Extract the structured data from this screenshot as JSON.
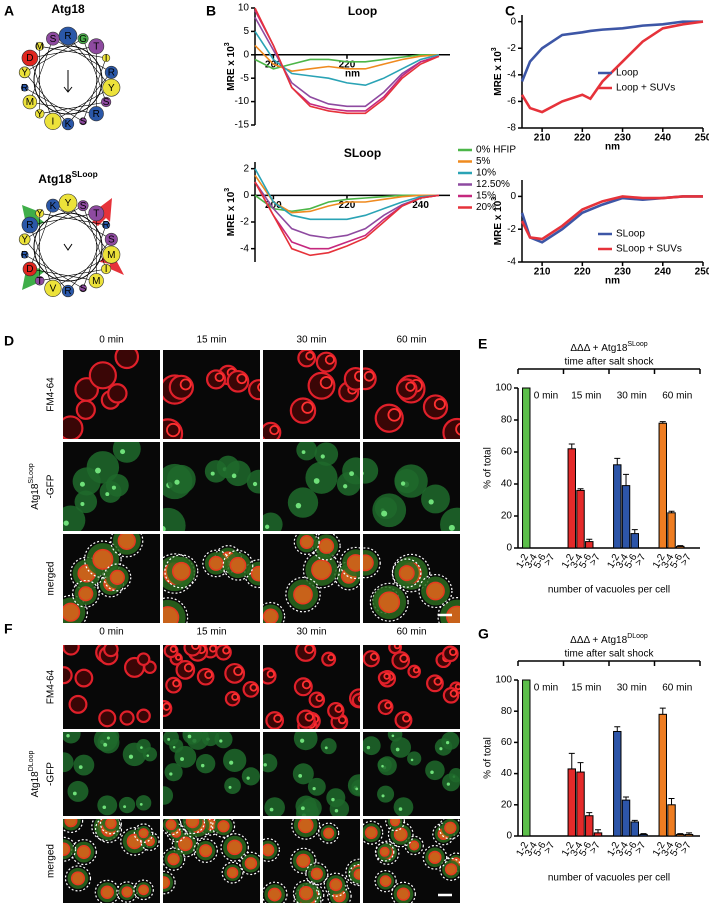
{
  "panel_labels": [
    "A",
    "B",
    "C",
    "D",
    "E",
    "F",
    "G"
  ],
  "helical_wheels": [
    {
      "title": "Atg18",
      "residues": [
        "R",
        "Y",
        "I",
        "D",
        "T",
        "R",
        "M",
        "S",
        "R",
        "K",
        "Y",
        "G",
        "S",
        "Y",
        "M",
        "I",
        "S",
        "R"
      ]
    },
    {
      "title": "Atg18",
      "title_superscript": "SLoop",
      "residues": [
        "Y",
        "M",
        "V",
        "R",
        "T",
        "M",
        "D",
        "K",
        "S",
        "R",
        "Y",
        "S",
        "I",
        "T",
        "Y",
        "R",
        "S",
        "R"
      ]
    }
  ],
  "microscopy": [
    {
      "columns": [
        "0 min",
        "15 min",
        "30 min",
        "60 min"
      ],
      "rows": [
        {
          "label": "FM4-64"
        },
        {
          "label": "Atg18",
          "superscript": "SLoop",
          "suffix": "-GFP"
        },
        {
          "label": "merged"
        }
      ]
    },
    {
      "columns": [
        "0 min",
        "15 min",
        "30 min",
        "60 min"
      ],
      "rows": [
        {
          "label": "FM4-64"
        },
        {
          "label": "Atg18",
          "superscript": "DLoop",
          "suffix": "-GFP"
        },
        {
          "label": "merged"
        }
      ]
    }
  ],
  "chart_data": [
    {
      "type": "line",
      "title": "Loop",
      "xlabel": "nm",
      "ylabel": "MRE x 10",
      "ylabel_superscript": "3",
      "xlim": [
        195,
        248
      ],
      "ylim": [
        -15,
        10
      ],
      "xticks": [
        200,
        220
      ],
      "yticks": [
        10,
        5,
        0,
        -5,
        -10,
        -15
      ],
      "xaxis_position": "zero",
      "legend": "outside-right",
      "x": [
        195,
        200,
        205,
        210,
        215,
        220,
        225,
        230,
        235,
        240,
        245
      ],
      "series": [
        {
          "name": "0% HFIP",
          "color": "#4cb648",
          "values": [
            -1,
            -3,
            -2,
            -1,
            -1,
            -1.5,
            -1.5,
            -1,
            -0.5,
            0,
            0
          ]
        },
        {
          "name": "5%",
          "color": "#ef8a1f",
          "values": [
            2,
            -2,
            -3.5,
            -3,
            -2.5,
            -3,
            -3,
            -2,
            -1,
            -0.3,
            0
          ]
        },
        {
          "name": "10%",
          "color": "#2aa3b5",
          "values": [
            5,
            -1,
            -4,
            -4.5,
            -5,
            -6,
            -6.5,
            -5,
            -3,
            -1,
            0
          ]
        },
        {
          "name": "12.50%",
          "color": "#8e4aa0",
          "values": [
            8,
            1,
            -6,
            -9,
            -10.5,
            -11,
            -11,
            -8,
            -4,
            -1.5,
            -0.3
          ]
        },
        {
          "name": "15%",
          "color": "#c5287e",
          "values": [
            9.5,
            2,
            -7,
            -10.5,
            -11.5,
            -12,
            -12,
            -9,
            -4.5,
            -1.5,
            -0.3
          ]
        },
        {
          "name": "20%",
          "color": "#e6323a",
          "values": [
            10,
            2,
            -7,
            -11,
            -12,
            -12.5,
            -12.5,
            -9.5,
            -5,
            -2,
            -0.3
          ]
        }
      ]
    },
    {
      "type": "line",
      "title": "SLoop",
      "ylabel": "MRE x 10",
      "ylabel_superscript": "3",
      "xlim": [
        195,
        248
      ],
      "ylim": [
        -5,
        2.5
      ],
      "xticks": [
        200,
        220,
        240
      ],
      "yticks": [
        2,
        0,
        -2,
        -4
      ],
      "xaxis_position": "zero",
      "x": [
        195,
        200,
        205,
        210,
        215,
        220,
        225,
        230,
        235,
        240,
        245
      ],
      "series": [
        {
          "color": "#4cb648",
          "values": [
            0,
            -1,
            -1.2,
            -1,
            -0.5,
            -0.3,
            -0.2,
            -0.1,
            0,
            0,
            0
          ]
        },
        {
          "color": "#ef8a1f",
          "values": [
            1.5,
            -0.5,
            -1.3,
            -1.2,
            -0.8,
            -0.5,
            -0.5,
            -0.3,
            -0.1,
            0,
            0
          ]
        },
        {
          "color": "#2aa3b5",
          "values": [
            2,
            -0.5,
            -1.5,
            -1.8,
            -1.8,
            -1.8,
            -1.5,
            -1,
            -0.5,
            -0.1,
            0
          ]
        },
        {
          "color": "#8e4aa0",
          "values": [
            1,
            -1,
            -2.5,
            -3,
            -3.2,
            -3,
            -2.5,
            -1.5,
            -0.7,
            -0.2,
            0
          ]
        },
        {
          "color": "#c5287e",
          "values": [
            1,
            -1.5,
            -3.5,
            -4,
            -4,
            -3.5,
            -3,
            -1.8,
            -0.8,
            -0.2,
            0
          ]
        },
        {
          "color": "#e6323a",
          "values": [
            1,
            -1.5,
            -4,
            -4.5,
            -4.3,
            -3.8,
            -3.2,
            -2,
            -0.8,
            -0.2,
            0
          ]
        }
      ]
    },
    {
      "type": "line",
      "xlabel": "nm",
      "ylabel": "MRE x 10",
      "ylabel_superscript": "3",
      "xlim": [
        205,
        250
      ],
      "ylim": [
        -8,
        0.5
      ],
      "xticks": [
        210,
        220,
        230,
        240,
        250
      ],
      "yticks": [
        0,
        -2,
        -4,
        -6,
        -8
      ],
      "xaxis_position": "bottom",
      "legend": "right",
      "x": [
        205,
        207,
        210,
        215,
        220,
        222,
        225,
        230,
        235,
        240,
        245,
        250
      ],
      "series": [
        {
          "name": "Loop",
          "color": "#3d56a6",
          "values": [
            -4.5,
            -3,
            -2,
            -1,
            -0.8,
            -0.7,
            -0.6,
            -0.5,
            -0.3,
            -0.2,
            0,
            0
          ]
        },
        {
          "name": "Loop + SUVs",
          "color": "#e6323a",
          "values": [
            -5.5,
            -6.5,
            -6.8,
            -6,
            -5.5,
            -5.8,
            -4.5,
            -3,
            -1.5,
            -0.5,
            -0.2,
            0
          ]
        }
      ]
    },
    {
      "type": "line",
      "xlabel": "nm",
      "ylabel": "MRE x 10",
      "ylabel_superscript": "3",
      "xlim": [
        205,
        250
      ],
      "ylim": [
        -4,
        1
      ],
      "xticks": [
        210,
        220,
        230,
        240,
        250
      ],
      "yticks": [
        0,
        -2,
        -4
      ],
      "xaxis_position": "bottom",
      "legend": "right",
      "x": [
        205,
        207,
        210,
        215,
        220,
        225,
        230,
        235,
        240,
        245,
        250
      ],
      "series": [
        {
          "name": "SLoop",
          "color": "#3d56a6",
          "values": [
            -1,
            -2.5,
            -2.8,
            -2,
            -1,
            -0.5,
            -0.1,
            -0.2,
            -0.1,
            0,
            0
          ]
        },
        {
          "name": "SLoop + SUVs",
          "color": "#e6323a",
          "values": [
            -1.5,
            -2.5,
            -2.6,
            -1.8,
            -0.8,
            -0.3,
            0,
            -0.1,
            -0.1,
            0,
            0
          ]
        }
      ]
    },
    {
      "type": "grouped_bar",
      "title": "ΔΔΔ + Atg18",
      "title_superscript": "SLoop",
      "subtitle": "time after salt shock",
      "xlabel": "number of vacuoles per cell",
      "ylabel": "% of total",
      "ylim": [
        0,
        100
      ],
      "yticks": [
        0,
        20,
        40,
        60,
        80,
        100
      ],
      "categories": [
        "1-2",
        "3-4",
        "5-6",
        ">7"
      ],
      "groups": [
        {
          "name": "0 min",
          "color": "#5cbf4a",
          "values": [
            100,
            0,
            0,
            0
          ],
          "errors": [
            0,
            0,
            0,
            0
          ]
        },
        {
          "name": "15 min",
          "color": "#e42a2a",
          "values": [
            62,
            36,
            4,
            0
          ],
          "errors": [
            3,
            1,
            1.5,
            0
          ]
        },
        {
          "name": "30 min",
          "color": "#2d55a8",
          "values": [
            52,
            39,
            9,
            0
          ],
          "errors": [
            4,
            7,
            2.5,
            0
          ]
        },
        {
          "name": "60 min",
          "color": "#ee7d22",
          "values": [
            78,
            22,
            1,
            0
          ],
          "errors": [
            1,
            1,
            0.5,
            0
          ]
        }
      ]
    },
    {
      "type": "grouped_bar",
      "title": "ΔΔΔ + Atg18",
      "title_superscript": "DLoop",
      "subtitle": "time after salt shock",
      "xlabel": "number of vacuoles per cell",
      "ylabel": "% of total",
      "ylim": [
        0,
        100
      ],
      "yticks": [
        0,
        20,
        40,
        60,
        80,
        100
      ],
      "categories": [
        "1-2",
        "3-4",
        "5-6",
        ">7"
      ],
      "groups": [
        {
          "name": "0 min",
          "color": "#5cbf4a",
          "values": [
            100,
            0,
            0,
            0
          ],
          "errors": [
            0,
            0,
            0,
            0
          ]
        },
        {
          "name": "15 min",
          "color": "#e42a2a",
          "values": [
            43,
            41,
            13,
            2
          ],
          "errors": [
            10,
            6,
            2,
            2
          ]
        },
        {
          "name": "30 min",
          "color": "#2d55a8",
          "values": [
            67,
            23,
            9,
            1
          ],
          "errors": [
            3,
            2,
            1,
            0.5
          ]
        },
        {
          "name": "60 min",
          "color": "#ee7d22",
          "values": [
            78,
            20,
            1,
            1
          ],
          "errors": [
            4,
            4,
            0.5,
            1
          ]
        }
      ]
    }
  ]
}
